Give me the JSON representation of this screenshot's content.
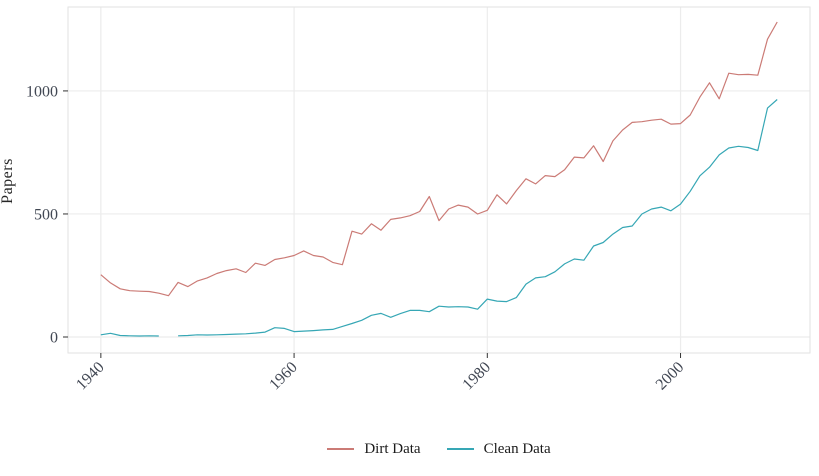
{
  "figure": {
    "title": "",
    "y_axis_title": "Papers"
  },
  "chart_data": {
    "type": "line",
    "title": "",
    "xlabel": "",
    "ylabel": "Papers",
    "x_ticks": [
      1940,
      1960,
      1980,
      2000
    ],
    "y_ticks": [
      0,
      500,
      1000
    ],
    "xlim": [
      1936.6,
      2013.4
    ],
    "ylim": [
      -65,
      1341
    ],
    "grid": "major-only light gray, horizontal and vertical",
    "legend_position": "bottom-center",
    "x": [
      1940,
      1941,
      1942,
      1943,
      1944,
      1945,
      1946,
      1947,
      1948,
      1949,
      1950,
      1951,
      1952,
      1953,
      1954,
      1955,
      1956,
      1957,
      1958,
      1959,
      1960,
      1961,
      1962,
      1963,
      1964,
      1965,
      1966,
      1967,
      1968,
      1969,
      1970,
      1971,
      1972,
      1973,
      1974,
      1975,
      1976,
      1977,
      1978,
      1979,
      1980,
      1981,
      1982,
      1983,
      1984,
      1985,
      1986,
      1987,
      1988,
      1989,
      1990,
      1991,
      1992,
      1993,
      1994,
      1995,
      1996,
      1997,
      1998,
      1999,
      2000,
      2001,
      2002,
      2003,
      2004,
      2005,
      2006,
      2007,
      2008,
      2009,
      2010
    ],
    "series": [
      {
        "name": "Dirt Data",
        "color": "#CB7B76",
        "values": [
          253,
          220,
          196,
          188,
          186,
          185,
          178,
          168,
          222,
          205,
          228,
          240,
          258,
          270,
          277,
          262,
          300,
          291,
          315,
          322,
          331,
          350,
          331,
          325,
          303,
          294,
          430,
          418,
          460,
          434,
          478,
          484,
          493,
          510,
          571,
          473,
          520,
          536,
          528,
          500,
          515,
          578,
          541,
          595,
          643,
          622,
          656,
          652,
          680,
          731,
          728,
          777,
          713,
          797,
          841,
          872,
          875,
          881,
          885,
          865,
          867,
          902,
          975,
          1033,
          968,
          1072,
          1066,
          1067,
          1064,
          1210,
          1280
        ]
      },
      {
        "name": "Clean Data",
        "color": "#36A7B5",
        "values": [
          9,
          15,
          6,
          5,
          4,
          5,
          4,
          null,
          5,
          6,
          9,
          8,
          9,
          10,
          12,
          13,
          16,
          20,
          38,
          35,
          22,
          24,
          26,
          29,
          31,
          43,
          55,
          68,
          88,
          96,
          80,
          95,
          108,
          108,
          103,
          125,
          122,
          123,
          122,
          113,
          154,
          146,
          144,
          160,
          215,
          240,
          245,
          265,
          297,
          317,
          312,
          370,
          384,
          418,
          445,
          451,
          500,
          520,
          528,
          513,
          540,
          592,
          655,
          690,
          740,
          768,
          775,
          770,
          758,
          930,
          965
        ]
      }
    ],
    "colors": {
      "grid": "#ECECEC",
      "panel_border": "#E2E2E2",
      "tick_mark": "#333333",
      "axis_tick_text": "#414753",
      "text": "#262626"
    }
  }
}
